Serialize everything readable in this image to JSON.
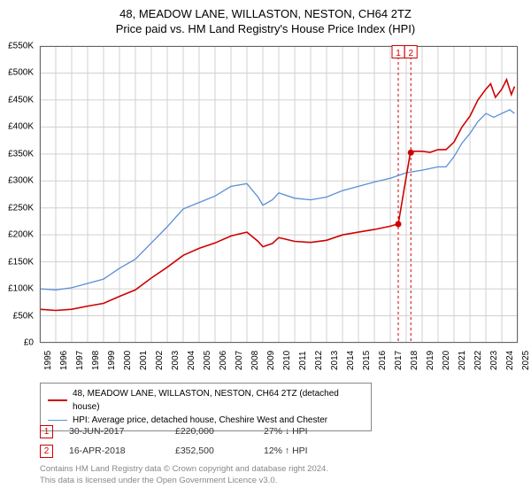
{
  "title": {
    "line1": "48, MEADOW LANE, WILLASTON, NESTON, CH64 2TZ",
    "line2": "Price paid vs. HM Land Registry's House Price Index (HPI)"
  },
  "chart": {
    "type": "line",
    "background_color": "#ffffff",
    "plot_border_color": "#666666",
    "grid_color": "#d0d0d0",
    "x": {
      "min": 1995,
      "max": 2025,
      "ticks": [
        1995,
        1996,
        1997,
        1998,
        1999,
        2000,
        2001,
        2002,
        2003,
        2004,
        2005,
        2006,
        2007,
        2008,
        2009,
        2010,
        2011,
        2012,
        2013,
        2014,
        2015,
        2016,
        2017,
        2018,
        2019,
        2020,
        2021,
        2022,
        2023,
        2024,
        2025
      ]
    },
    "y": {
      "min": 0,
      "max": 550000,
      "ticks": [
        0,
        50000,
        100000,
        150000,
        200000,
        250000,
        300000,
        350000,
        400000,
        450000,
        500000,
        550000
      ],
      "tick_labels": [
        "£0",
        "£50K",
        "£100K",
        "£150K",
        "£200K",
        "£250K",
        "£300K",
        "£350K",
        "£400K",
        "£450K",
        "£500K",
        "£550K"
      ]
    },
    "series": [
      {
        "name": "48, MEADOW LANE, WILLASTON, NESTON, CH64 2TZ (detached house)",
        "color": "#d00000",
        "width": 1.6,
        "points": [
          [
            1995.0,
            62000
          ],
          [
            1996.0,
            60000
          ],
          [
            1997.0,
            62000
          ],
          [
            1998.0,
            68000
          ],
          [
            1999.0,
            73000
          ],
          [
            2000.0,
            86000
          ],
          [
            2001.0,
            98000
          ],
          [
            2002.0,
            120000
          ],
          [
            2003.0,
            140000
          ],
          [
            2004.0,
            162000
          ],
          [
            2005.0,
            175000
          ],
          [
            2006.0,
            185000
          ],
          [
            2007.0,
            198000
          ],
          [
            2008.0,
            205000
          ],
          [
            2008.7,
            188000
          ],
          [
            2009.0,
            178000
          ],
          [
            2009.6,
            184000
          ],
          [
            2010.0,
            195000
          ],
          [
            2011.0,
            188000
          ],
          [
            2012.0,
            186000
          ],
          [
            2013.0,
            190000
          ],
          [
            2014.0,
            200000
          ],
          [
            2015.0,
            205000
          ],
          [
            2016.0,
            210000
          ],
          [
            2017.0,
            216000
          ],
          [
            2017.45,
            220000
          ],
          [
            2017.5,
            220000
          ],
          [
            2018.25,
            351000
          ],
          [
            2018.29,
            352500
          ],
          [
            2018.5,
            355000
          ],
          [
            2019.0,
            355000
          ],
          [
            2019.5,
            353000
          ],
          [
            2020.0,
            358000
          ],
          [
            2020.5,
            358000
          ],
          [
            2021.0,
            372000
          ],
          [
            2021.5,
            400000
          ],
          [
            2022.0,
            420000
          ],
          [
            2022.5,
            450000
          ],
          [
            2023.0,
            470000
          ],
          [
            2023.3,
            480000
          ],
          [
            2023.6,
            455000
          ],
          [
            2024.0,
            470000
          ],
          [
            2024.3,
            488000
          ],
          [
            2024.6,
            460000
          ],
          [
            2024.8,
            475000
          ]
        ],
        "sale_points": [
          {
            "x": 2017.5,
            "y": 220000,
            "marker": "1"
          },
          {
            "x": 2018.29,
            "y": 352500,
            "marker": "2"
          }
        ]
      },
      {
        "name": "HPI: Average price, detached house, Cheshire West and Chester",
        "color": "#5a8fd6",
        "width": 1.3,
        "points": [
          [
            1995.0,
            100000
          ],
          [
            1996.0,
            98000
          ],
          [
            1997.0,
            102000
          ],
          [
            1998.0,
            110000
          ],
          [
            1999.0,
            118000
          ],
          [
            2000.0,
            138000
          ],
          [
            2001.0,
            155000
          ],
          [
            2002.0,
            185000
          ],
          [
            2003.0,
            215000
          ],
          [
            2004.0,
            248000
          ],
          [
            2005.0,
            260000
          ],
          [
            2006.0,
            272000
          ],
          [
            2007.0,
            290000
          ],
          [
            2008.0,
            295000
          ],
          [
            2008.7,
            270000
          ],
          [
            2009.0,
            255000
          ],
          [
            2009.6,
            265000
          ],
          [
            2010.0,
            278000
          ],
          [
            2011.0,
            268000
          ],
          [
            2012.0,
            265000
          ],
          [
            2013.0,
            270000
          ],
          [
            2014.0,
            282000
          ],
          [
            2015.0,
            290000
          ],
          [
            2016.0,
            298000
          ],
          [
            2017.0,
            305000
          ],
          [
            2018.0,
            315000
          ],
          [
            2019.0,
            320000
          ],
          [
            2020.0,
            326000
          ],
          [
            2020.5,
            326000
          ],
          [
            2021.0,
            345000
          ],
          [
            2021.5,
            370000
          ],
          [
            2022.0,
            388000
          ],
          [
            2022.5,
            410000
          ],
          [
            2023.0,
            425000
          ],
          [
            2023.5,
            418000
          ],
          [
            2024.0,
            425000
          ],
          [
            2024.5,
            432000
          ],
          [
            2024.8,
            425000
          ]
        ]
      }
    ],
    "vertical_markers": [
      {
        "x": 2017.5,
        "color": "#d00000",
        "dash": "3,3",
        "top_label": "1"
      },
      {
        "x": 2018.29,
        "color": "#d00000",
        "dash": "3,3",
        "top_label": "2"
      }
    ]
  },
  "legend": {
    "items": [
      {
        "color": "#d00000",
        "width": 2,
        "label": "48, MEADOW LANE, WILLASTON, NESTON, CH64 2TZ (detached house)"
      },
      {
        "color": "#5a8fd6",
        "width": 1.3,
        "label": "HPI: Average price, detached house, Cheshire West and Chester"
      }
    ]
  },
  "sales": [
    {
      "marker": "1",
      "date": "30-JUN-2017",
      "price": "£220,000",
      "diff": "27% ↓ HPI"
    },
    {
      "marker": "2",
      "date": "16-APR-2018",
      "price": "£352,500",
      "diff": "12% ↑ HPI"
    }
  ],
  "footnote": {
    "line1": "Contains HM Land Registry data © Crown copyright and database right 2024.",
    "line2": "This data is licensed under the Open Government Licence v3.0."
  },
  "colors": {
    "marker_red": "#d00000",
    "text_muted": "#888888"
  }
}
